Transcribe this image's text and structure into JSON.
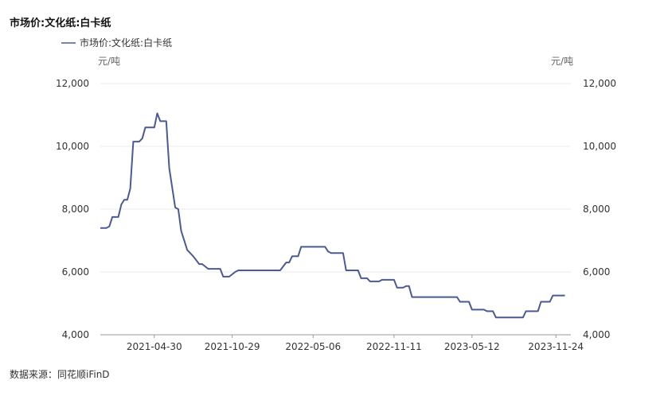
{
  "chart_data": {
    "type": "line",
    "title": "市场价:文化纸:白卡纸",
    "legend": {
      "entries": [
        "市场价:文化纸:白卡纸"
      ],
      "placement": "top-left"
    },
    "y_unit_left": "元/吨",
    "y_unit_right": "元/吨",
    "ylim": [
      4000,
      12000
    ],
    "y_ticks": [
      4000,
      6000,
      8000,
      10000,
      12000
    ],
    "y_tick_labels": [
      "4,000",
      "6,000",
      "8,000",
      "10,000",
      "12,000"
    ],
    "x_tick_labels": [
      "2021-04-30",
      "2021-10-29",
      "2022-05-06",
      "2022-11-11",
      "2023-05-12",
      "2023-11-24"
    ],
    "x_range": [
      "2020-12-25",
      "2023-12-29"
    ],
    "series": [
      {
        "name": "市场价:文化纸:白卡纸",
        "color": "#4b5a94",
        "points": [
          [
            "2020-12-25",
            7400
          ],
          [
            "2021-01-08",
            7400
          ],
          [
            "2021-01-15",
            7450
          ],
          [
            "2021-01-22",
            7750
          ],
          [
            "2021-02-05",
            7750
          ],
          [
            "2021-02-12",
            8150
          ],
          [
            "2021-02-19",
            8300
          ],
          [
            "2021-02-26",
            8300
          ],
          [
            "2021-03-05",
            8650
          ],
          [
            "2021-03-12",
            10150
          ],
          [
            "2021-03-26",
            10150
          ],
          [
            "2021-04-02",
            10250
          ],
          [
            "2021-04-09",
            10600
          ],
          [
            "2021-04-23",
            10600
          ],
          [
            "2021-04-30",
            10600
          ],
          [
            "2021-05-07",
            11050
          ],
          [
            "2021-05-14",
            10800
          ],
          [
            "2021-05-28",
            10800
          ],
          [
            "2021-06-04",
            9300
          ],
          [
            "2021-06-18",
            8050
          ],
          [
            "2021-06-25",
            8000
          ],
          [
            "2021-07-02",
            7300
          ],
          [
            "2021-07-16",
            6700
          ],
          [
            "2021-07-30",
            6500
          ],
          [
            "2021-08-13",
            6250
          ],
          [
            "2021-08-20",
            6250
          ],
          [
            "2021-09-03",
            6100
          ],
          [
            "2021-09-17",
            6100
          ],
          [
            "2021-10-01",
            6100
          ],
          [
            "2021-10-08",
            5850
          ],
          [
            "2021-10-22",
            5850
          ],
          [
            "2021-11-05",
            6000
          ],
          [
            "2021-11-12",
            6050
          ],
          [
            "2021-12-03",
            6050
          ],
          [
            "2022-01-07",
            6050
          ],
          [
            "2022-02-04",
            6050
          ],
          [
            "2022-02-18",
            6050
          ],
          [
            "2022-03-04",
            6300
          ],
          [
            "2022-03-11",
            6300
          ],
          [
            "2022-03-18",
            6500
          ],
          [
            "2022-04-01",
            6500
          ],
          [
            "2022-04-08",
            6800
          ],
          [
            "2022-05-06",
            6800
          ],
          [
            "2022-06-03",
            6800
          ],
          [
            "2022-06-10",
            6650
          ],
          [
            "2022-06-17",
            6600
          ],
          [
            "2022-07-15",
            6600
          ],
          [
            "2022-07-22",
            6050
          ],
          [
            "2022-08-19",
            6050
          ],
          [
            "2022-08-26",
            5800
          ],
          [
            "2022-09-09",
            5800
          ],
          [
            "2022-09-16",
            5700
          ],
          [
            "2022-10-07",
            5700
          ],
          [
            "2022-10-14",
            5750
          ],
          [
            "2022-11-11",
            5750
          ],
          [
            "2022-11-18",
            5500
          ],
          [
            "2022-12-02",
            5500
          ],
          [
            "2022-12-09",
            5550
          ],
          [
            "2022-12-16",
            5550
          ],
          [
            "2022-12-23",
            5200
          ],
          [
            "2023-04-07",
            5200
          ],
          [
            "2023-04-14",
            5050
          ],
          [
            "2023-05-05",
            5050
          ],
          [
            "2023-05-12",
            4800
          ],
          [
            "2023-06-09",
            4800
          ],
          [
            "2023-06-16",
            4750
          ],
          [
            "2023-06-30",
            4750
          ],
          [
            "2023-07-07",
            4550
          ],
          [
            "2023-09-08",
            4550
          ],
          [
            "2023-09-15",
            4750
          ],
          [
            "2023-10-13",
            4750
          ],
          [
            "2023-10-20",
            5050
          ],
          [
            "2023-11-10",
            5050
          ],
          [
            "2023-11-17",
            5250
          ],
          [
            "2023-12-15",
            5250
          ]
        ]
      }
    ],
    "source": "数据来源：同花顺iFinD",
    "grid": "horizontal"
  }
}
